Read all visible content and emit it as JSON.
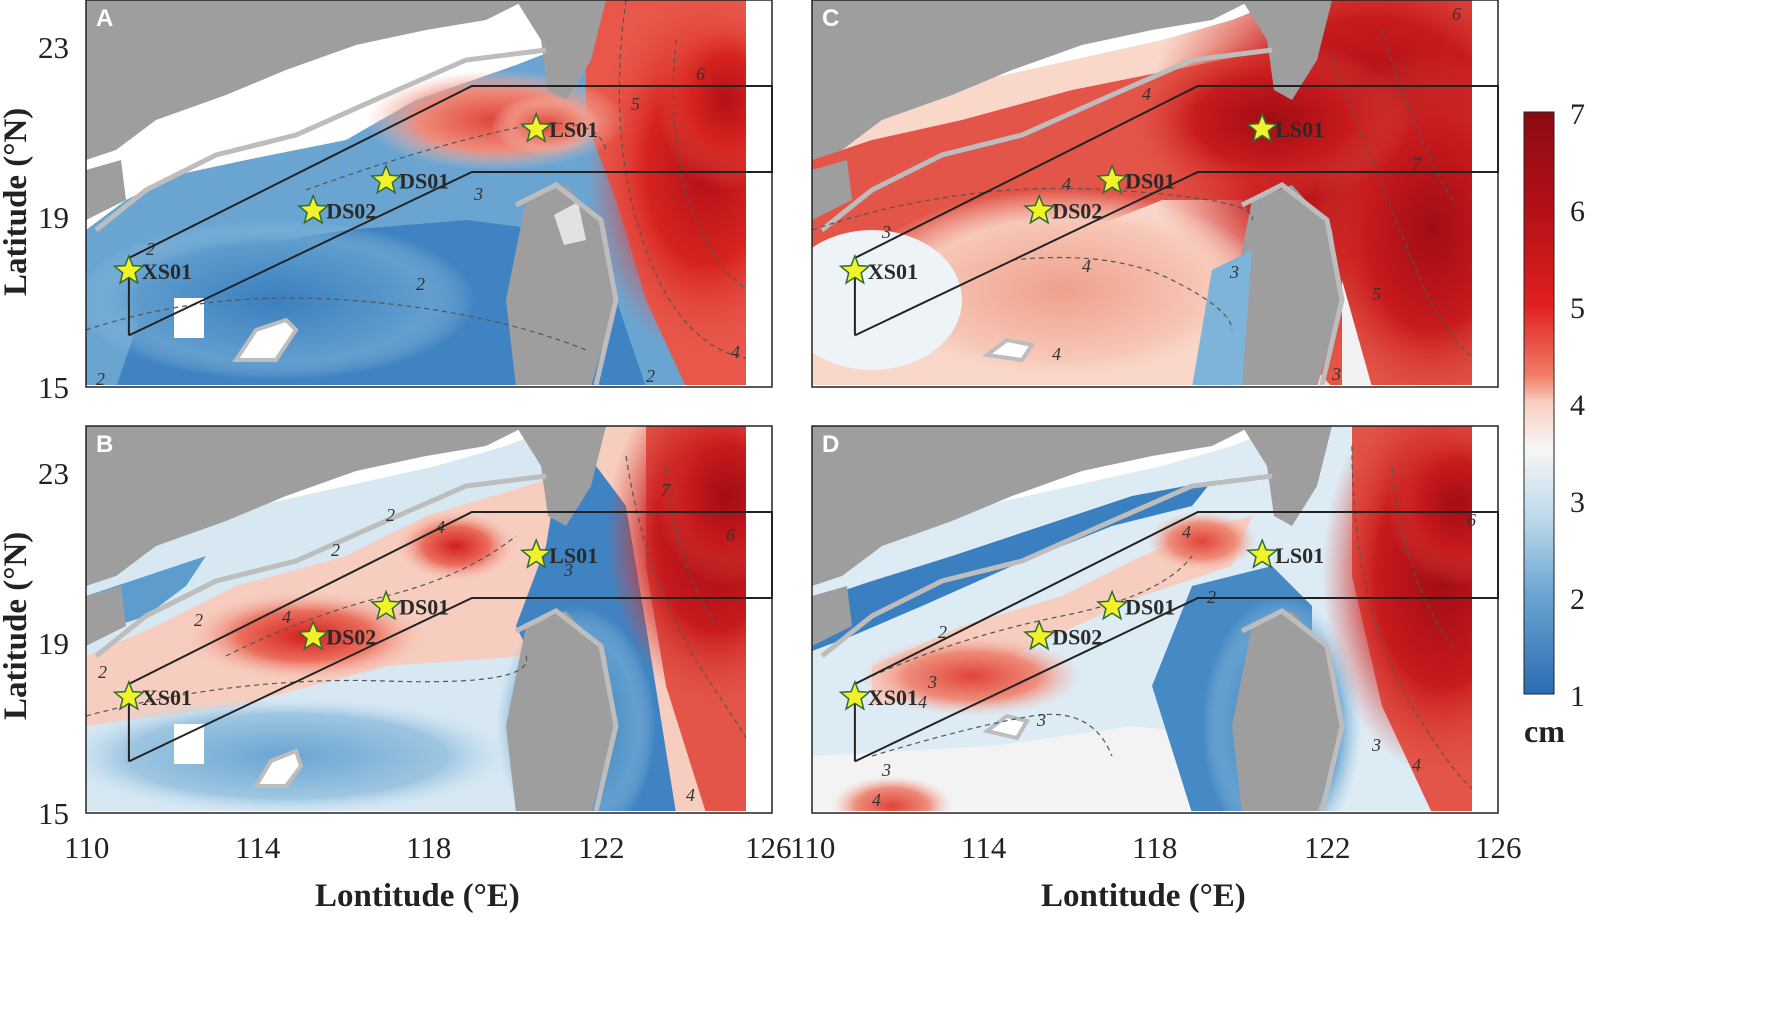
{
  "panels": [
    {
      "id": "A",
      "letter": "A",
      "contour_labels": [
        "2",
        "2",
        "2",
        "3",
        "4",
        "2",
        "5",
        "6"
      ]
    },
    {
      "id": "C",
      "letter": "C",
      "contour_labels": [
        "3",
        "4",
        "4",
        "4",
        "4",
        "3",
        "3",
        "5",
        "6",
        "7"
      ]
    },
    {
      "id": "B",
      "letter": "B",
      "contour_labels": [
        "2",
        "2",
        "2",
        "2",
        "3",
        "4",
        "4",
        "4",
        "6",
        "7"
      ]
    },
    {
      "id": "D",
      "letter": "D",
      "contour_labels": [
        "2",
        "3",
        "4",
        "4",
        "2",
        "3",
        "3",
        "4",
        "3",
        "4",
        "6"
      ]
    }
  ],
  "stations": [
    {
      "name": "XS01",
      "lon": 111.0,
      "lat": 17.7
    },
    {
      "name": "DS02",
      "lon": 115.3,
      "lat": 19.1
    },
    {
      "name": "DS01",
      "lon": 117.0,
      "lat": 19.8
    },
    {
      "name": "LS01",
      "lon": 120.5,
      "lat": 21.0
    }
  ],
  "axes": {
    "x_ticks": [
      "110",
      "114",
      "118",
      "122",
      "126"
    ],
    "y_ticks": [
      "23",
      "19",
      "15"
    ],
    "x_title": "Lontitude (°E)",
    "y_title": "Latitude (°N)",
    "lon_range": [
      110,
      126
    ],
    "lat_range": [
      15,
      24
    ]
  },
  "colorbar": {
    "ticks": [
      "7",
      "6",
      "5",
      "4",
      "3",
      "2",
      "1"
    ],
    "unit": "cm",
    "range": [
      1,
      7
    ]
  }
}
